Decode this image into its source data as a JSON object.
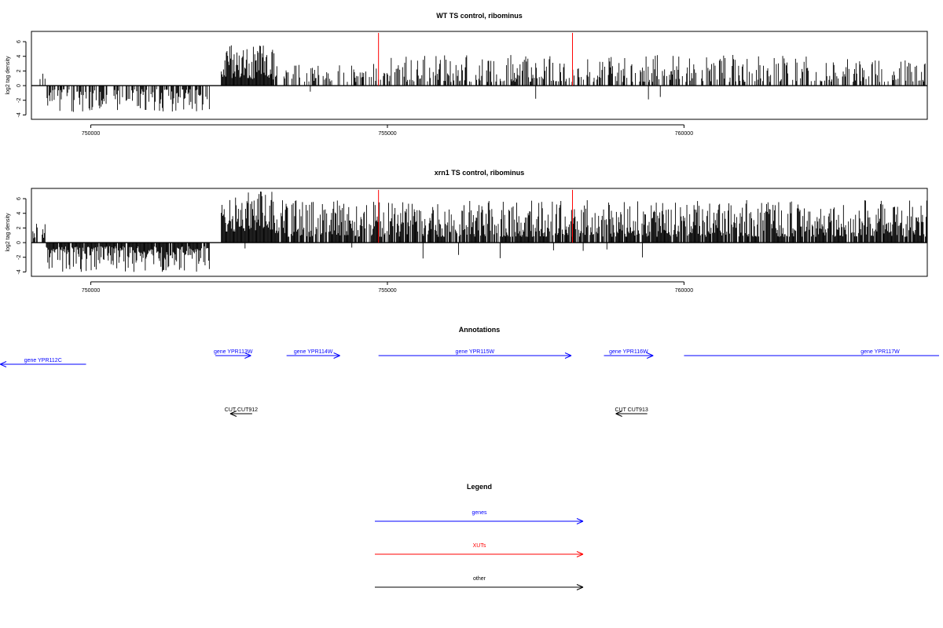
{
  "chart_data": [
    {
      "type": "bar",
      "title": "WT TS control, ribominus",
      "ylabel": "log2 tag density",
      "xlabel": "",
      "xlim": [
        748999,
        764101
      ],
      "ylim": [
        -4.6,
        7.4
      ],
      "xticks": [
        750000,
        755000,
        760000
      ],
      "xtick_labels": [
        "750000",
        "755000",
        "760000"
      ],
      "yticks": [
        -4,
        -2,
        0,
        2,
        4,
        6
      ],
      "ytick_labels": [
        "-4",
        "-2",
        "0",
        "2",
        "4",
        "6"
      ],
      "highlight_positions": [
        754850,
        758120
      ],
      "highlight_color": "#ff0000",
      "regions": [
        {
          "from": 749000,
          "to": 749250,
          "sign": 1,
          "density": 0.1,
          "min": 0.5,
          "max": 2.0
        },
        {
          "from": 749250,
          "to": 752000,
          "sign": -1,
          "density": 0.6,
          "min": 0.5,
          "max": 3.6
        },
        {
          "from": 752200,
          "to": 753100,
          "sign": 1,
          "density": 1.0,
          "min": 0.8,
          "max": 5.5
        },
        {
          "from": 753100,
          "to": 754800,
          "sign": 1,
          "density": 0.4,
          "min": 0.5,
          "max": 3.0
        },
        {
          "from": 754800,
          "to": 764100,
          "sign": 1,
          "density": 0.45,
          "min": 0.5,
          "max": 4.2
        }
      ],
      "sparse_negatives": [
        753700,
        757500,
        759400,
        759600
      ]
    },
    {
      "type": "bar",
      "title": "xrn1 TS control, ribominus",
      "ylabel": "log2 tag density",
      "xlabel": "",
      "xlim": [
        748999,
        764101
      ],
      "ylim": [
        -4.6,
        7.4
      ],
      "xticks": [
        750000,
        755000,
        760000
      ],
      "xtick_labels": [
        "750000",
        "755000",
        "760000"
      ],
      "yticks": [
        -4,
        -2,
        0,
        2,
        4,
        6
      ],
      "ytick_labels": [
        "-4",
        "-2",
        "0",
        "2",
        "4",
        "6"
      ],
      "highlight_positions": [
        754850,
        758120
      ],
      "highlight_color": "#ff0000",
      "regions": [
        {
          "from": 749000,
          "to": 749250,
          "sign": 1,
          "density": 0.3,
          "min": 0.5,
          "max": 2.6
        },
        {
          "from": 749250,
          "to": 752000,
          "sign": -1,
          "density": 0.9,
          "min": 0.5,
          "max": 4.0
        },
        {
          "from": 752200,
          "to": 753100,
          "sign": 1,
          "density": 1.0,
          "min": 1.5,
          "max": 7.0
        },
        {
          "from": 753100,
          "to": 764100,
          "sign": 1,
          "density": 0.85,
          "min": 0.8,
          "max": 5.8
        }
      ],
      "sparse_negatives": [
        752600,
        754400,
        755600,
        756200,
        756900,
        757800,
        758300,
        758700,
        759300
      ]
    }
  ],
  "annotations": {
    "title": "Annotations",
    "genes": [
      {
        "label": "gene YPR112C",
        "from": 749920,
        "to": 747700,
        "strand": "-",
        "color": "#0000ff"
      },
      {
        "label": "gene YPR113W",
        "from": 752100,
        "to": 752700,
        "strand": "+",
        "color": "#0000ff"
      },
      {
        "label": "gene YPR114W",
        "from": 753300,
        "to": 754200,
        "strand": "+",
        "color": "#0000ff"
      },
      {
        "label": "gene YPR115W",
        "from": 754850,
        "to": 758100,
        "strand": "+",
        "color": "#0000ff"
      },
      {
        "label": "gene YPR116W",
        "from": 758650,
        "to": 759480,
        "strand": "+",
        "color": "#0000ff"
      },
      {
        "label": "gene YPR117W",
        "from": 760000,
        "to": 764500,
        "strand": "+",
        "color": "#0000ff"
      }
    ],
    "cuts": [
      {
        "label": "CUT CUT912",
        "from": 752720,
        "to": 752350,
        "strand": "-",
        "color": "#000000"
      },
      {
        "label": "CUT CUT913",
        "from": 759380,
        "to": 758850,
        "strand": "-",
        "color": "#000000"
      }
    ]
  },
  "legend": {
    "title": "Legend",
    "items": [
      {
        "label": "genes",
        "color": "#0000ff"
      },
      {
        "label": "XUTs",
        "color": "#ff0000"
      },
      {
        "label": "other",
        "color": "#000000"
      }
    ]
  }
}
